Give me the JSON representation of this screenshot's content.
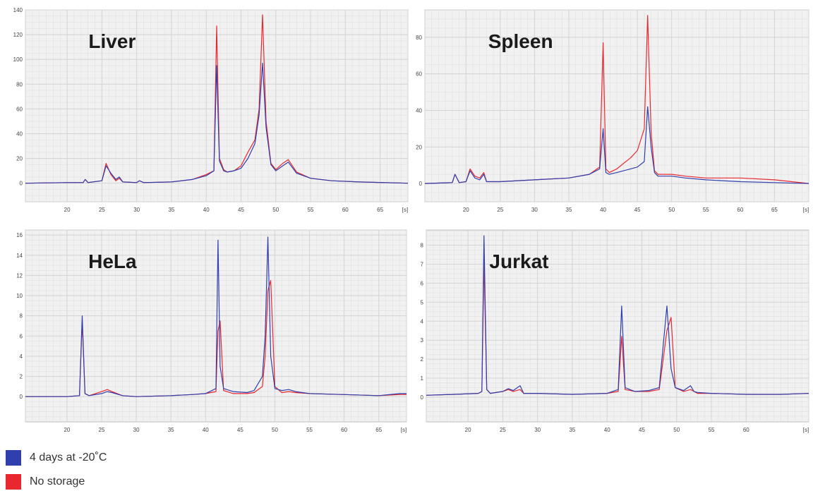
{
  "colors": {
    "series_4days": "#2f3fae",
    "series_nostorage": "#e8282e",
    "plot_bg": "#f1f1f1",
    "grid": "#d4d4d4",
    "axis_text": "#444444"
  },
  "legend": [
    {
      "label": "4 days at -20˚C",
      "color": "#2f3fae"
    },
    {
      "label": "No storage",
      "color": "#e8282e"
    }
  ],
  "chart_data": [
    {
      "type": "line",
      "title": "Liver",
      "xlabel": "[s]",
      "x_unit": "[s]",
      "xlim": [
        14,
        69
      ],
      "ylim": [
        -15,
        140
      ],
      "xticks": [
        20,
        25,
        30,
        35,
        40,
        45,
        50,
        55,
        60,
        65
      ],
      "xtick_labels": [
        "20",
        "25",
        "30",
        "35",
        "40",
        "45",
        "50",
        "55",
        "60",
        "65"
      ],
      "yticks": [
        0,
        20,
        40,
        60,
        80,
        100,
        120,
        140
      ],
      "ytick_labels": [
        "0",
        "20",
        "40",
        "60",
        "80",
        "100",
        "120",
        "140"
      ],
      "grid": true,
      "series": [
        {
          "name": "4 days at -20˚C",
          "color": "#2f3fae",
          "x": [
            14,
            20,
            22.3,
            22.6,
            23,
            25,
            25.6,
            26.3,
            27,
            27.5,
            28,
            30,
            30.4,
            31,
            35,
            38,
            40,
            41.1,
            41.5,
            41.9,
            42.5,
            43,
            44,
            45,
            46,
            47,
            47.6,
            48.1,
            48.6,
            49.3,
            50,
            51,
            51.8,
            53,
            55,
            58,
            62,
            69
          ],
          "y": [
            0,
            0.5,
            0.5,
            3,
            0.5,
            2,
            14,
            8,
            3,
            5,
            1,
            0.5,
            2,
            0.5,
            1,
            3,
            6,
            10,
            95,
            18,
            10,
            9,
            10,
            12,
            20,
            32,
            55,
            97,
            45,
            15,
            10,
            14,
            17,
            8,
            4,
            2,
            1,
            0
          ]
        },
        {
          "name": "No storage",
          "color": "#e8282e",
          "x": [
            14,
            20,
            22.3,
            22.6,
            23,
            25,
            25.6,
            26.3,
            27,
            27.5,
            28,
            30,
            30.4,
            31,
            35,
            38,
            40,
            41.1,
            41.5,
            41.9,
            42.5,
            43,
            44,
            45,
            46,
            47,
            47.6,
            48.1,
            48.6,
            49.3,
            50,
            51,
            51.8,
            53,
            55,
            58,
            62,
            69
          ],
          "y": [
            0,
            0.5,
            0.5,
            3,
            0.5,
            2,
            16,
            7,
            2,
            4,
            1,
            0.5,
            2,
            0.5,
            1,
            3,
            7,
            10,
            127,
            20,
            11,
            9,
            10,
            14,
            25,
            35,
            60,
            136,
            50,
            16,
            11,
            16,
            19,
            9,
            4,
            2,
            1,
            0
          ]
        }
      ]
    },
    {
      "type": "line",
      "title": "Spleen",
      "xlabel": "[s]",
      "x_unit": "[s]",
      "xlim": [
        14,
        70
      ],
      "ylim": [
        -10,
        95
      ],
      "xticks": [
        20,
        25,
        30,
        35,
        40,
        45,
        50,
        55,
        60,
        65
      ],
      "xtick_labels": [
        "20",
        "25",
        "30",
        "35",
        "40",
        "45",
        "50",
        "55",
        "60",
        "65"
      ],
      "yticks": [
        0,
        20,
        40,
        60,
        80
      ],
      "ytick_labels": [
        "0",
        "20",
        "40",
        "60",
        "80"
      ],
      "grid": true,
      "series": [
        {
          "name": "4 days at -20˚C",
          "color": "#2f3fae",
          "x": [
            14,
            18,
            18.4,
            19,
            20,
            20.6,
            21.3,
            22,
            22.6,
            23,
            25,
            30,
            35,
            38,
            39.5,
            40,
            40.4,
            40.9,
            42,
            44,
            45,
            46,
            46.5,
            47,
            47.5,
            48,
            50,
            52,
            55,
            60,
            65,
            70
          ],
          "y": [
            0,
            0.5,
            5,
            0.5,
            1,
            7,
            3,
            2,
            5,
            1,
            1,
            2,
            3,
            5,
            8,
            30,
            6,
            5,
            6,
            8,
            9,
            12,
            42,
            20,
            6,
            4,
            4,
            3,
            2,
            1,
            0.5,
            0
          ]
        },
        {
          "name": "No storage",
          "color": "#e8282e",
          "x": [
            14,
            18,
            18.4,
            19,
            20,
            20.6,
            21.3,
            22,
            22.6,
            23,
            25,
            30,
            35,
            38,
            39.5,
            40,
            40.4,
            40.9,
            42,
            44,
            45,
            46,
            46.5,
            47,
            47.5,
            48,
            50,
            52,
            55,
            60,
            65,
            70
          ],
          "y": [
            0,
            0.5,
            5,
            0.5,
            1,
            8,
            4,
            3,
            6,
            1,
            1,
            2,
            3,
            5,
            9,
            77,
            8,
            6,
            8,
            14,
            18,
            30,
            92,
            28,
            7,
            5,
            5,
            4,
            3,
            3,
            2,
            0
          ]
        }
      ]
    },
    {
      "type": "line",
      "title": "HeLa",
      "xlabel": "[s]",
      "x_unit": "[s]",
      "xlim": [
        14,
        69
      ],
      "ylim": [
        -2.5,
        16.5
      ],
      "xticks": [
        20,
        25,
        30,
        35,
        40,
        45,
        50,
        55,
        60,
        65
      ],
      "xtick_labels": [
        "20",
        "25",
        "30",
        "35",
        "40",
        "45",
        "50",
        "55",
        "60",
        "65"
      ],
      "yticks": [
        0,
        2,
        4,
        6,
        8,
        10,
        12,
        14,
        16
      ],
      "ytick_labels": [
        "0",
        "2",
        "4",
        "6",
        "8",
        "10",
        "12",
        "14",
        "16"
      ],
      "grid": true,
      "series": [
        {
          "name": "4 days at -20˚C",
          "color": "#2f3fae",
          "x": [
            14,
            20,
            21.8,
            22.2,
            22.6,
            23.2,
            25,
            25.8,
            26.5,
            28,
            30,
            35,
            38,
            40,
            41.5,
            41.8,
            42.1,
            42.6,
            44,
            46,
            47,
            48.2,
            48.6,
            49,
            49.4,
            50,
            51,
            52,
            53,
            55,
            60,
            65,
            68,
            69
          ],
          "y": [
            0,
            0,
            0.1,
            8,
            0.3,
            0.1,
            0.3,
            0.5,
            0.4,
            0.1,
            0,
            0.1,
            0.2,
            0.3,
            0.8,
            15.5,
            3,
            0.8,
            0.5,
            0.4,
            0.6,
            2,
            6,
            15.8,
            4,
            0.8,
            0.6,
            0.7,
            0.5,
            0.3,
            0.2,
            0.1,
            0.3,
            0.3
          ]
        },
        {
          "name": "No storage",
          "color": "#e8282e",
          "x": [
            14,
            20,
            21.8,
            22.2,
            22.6,
            23.2,
            25,
            25.8,
            26.5,
            28,
            30,
            35,
            38,
            40,
            41.5,
            41.8,
            42.1,
            42.6,
            44,
            46,
            47,
            48.2,
            48.6,
            49,
            49.4,
            50,
            51,
            52,
            53,
            55,
            60,
            65,
            68,
            69
          ],
          "y": [
            0,
            0,
            0.1,
            7.5,
            0.3,
            0.1,
            0.5,
            0.7,
            0.5,
            0.1,
            0,
            0.1,
            0.2,
            0.3,
            0.5,
            6.5,
            7.5,
            0.6,
            0.3,
            0.3,
            0.4,
            1,
            4,
            10.5,
            11.5,
            1,
            0.4,
            0.5,
            0.4,
            0.3,
            0.2,
            0.1,
            0.2,
            0.2
          ]
        }
      ]
    },
    {
      "type": "line",
      "title": "Jurkat",
      "xlabel": "[s]",
      "x_unit": "[s]",
      "xlim": [
        14,
        69
      ],
      "ylim": [
        -1.3,
        8.8
      ],
      "xticks": [
        20,
        25,
        30,
        35,
        40,
        45,
        50,
        55,
        60
      ],
      "xtick_labels": [
        "20",
        "25",
        "30",
        "35",
        "40",
        "45",
        "50",
        "55",
        "60"
      ],
      "yticks": [
        0,
        1,
        2,
        3,
        4,
        5,
        6,
        7,
        8
      ],
      "ytick_labels": [
        "0",
        "1",
        "2",
        "3",
        "4",
        "5",
        "6",
        "7",
        "8"
      ],
      "grid": true,
      "series": [
        {
          "name": "4 days at -20˚C",
          "color": "#2f3fae",
          "x": [
            14,
            18,
            21.5,
            22,
            22.3,
            22.7,
            23.2,
            25,
            25.8,
            26.5,
            27.5,
            28,
            30,
            35,
            40,
            41.6,
            42.1,
            42.6,
            44,
            46,
            47.5,
            48.6,
            49.2,
            49.8,
            51,
            52,
            52.5,
            53,
            55,
            60,
            65,
            69
          ],
          "y": [
            0.1,
            0.15,
            0.2,
            0.3,
            8.5,
            0.4,
            0.2,
            0.3,
            0.45,
            0.35,
            0.6,
            0.2,
            0.2,
            0.15,
            0.2,
            0.4,
            4.8,
            0.5,
            0.3,
            0.35,
            0.5,
            4.8,
            1.5,
            0.5,
            0.35,
            0.6,
            0.3,
            0.25,
            0.2,
            0.15,
            0.15,
            0.2
          ]
        },
        {
          "name": "No storage",
          "color": "#e8282e",
          "x": [
            14,
            18,
            21.5,
            22,
            22.3,
            22.7,
            23.2,
            25,
            25.8,
            26.5,
            27.5,
            28,
            30,
            35,
            40,
            41.6,
            42.1,
            42.6,
            44,
            46,
            47.5,
            48.6,
            49.2,
            49.8,
            51,
            52,
            52.5,
            53,
            55,
            60,
            65,
            69
          ],
          "y": [
            0.1,
            0.15,
            0.2,
            0.3,
            7.2,
            0.4,
            0.2,
            0.3,
            0.4,
            0.3,
            0.4,
            0.2,
            0.2,
            0.15,
            0.2,
            0.3,
            3.2,
            0.4,
            0.3,
            0.3,
            0.4,
            3.5,
            4.2,
            0.5,
            0.3,
            0.4,
            0.3,
            0.2,
            0.2,
            0.15,
            0.15,
            0.2
          ]
        }
      ]
    }
  ]
}
